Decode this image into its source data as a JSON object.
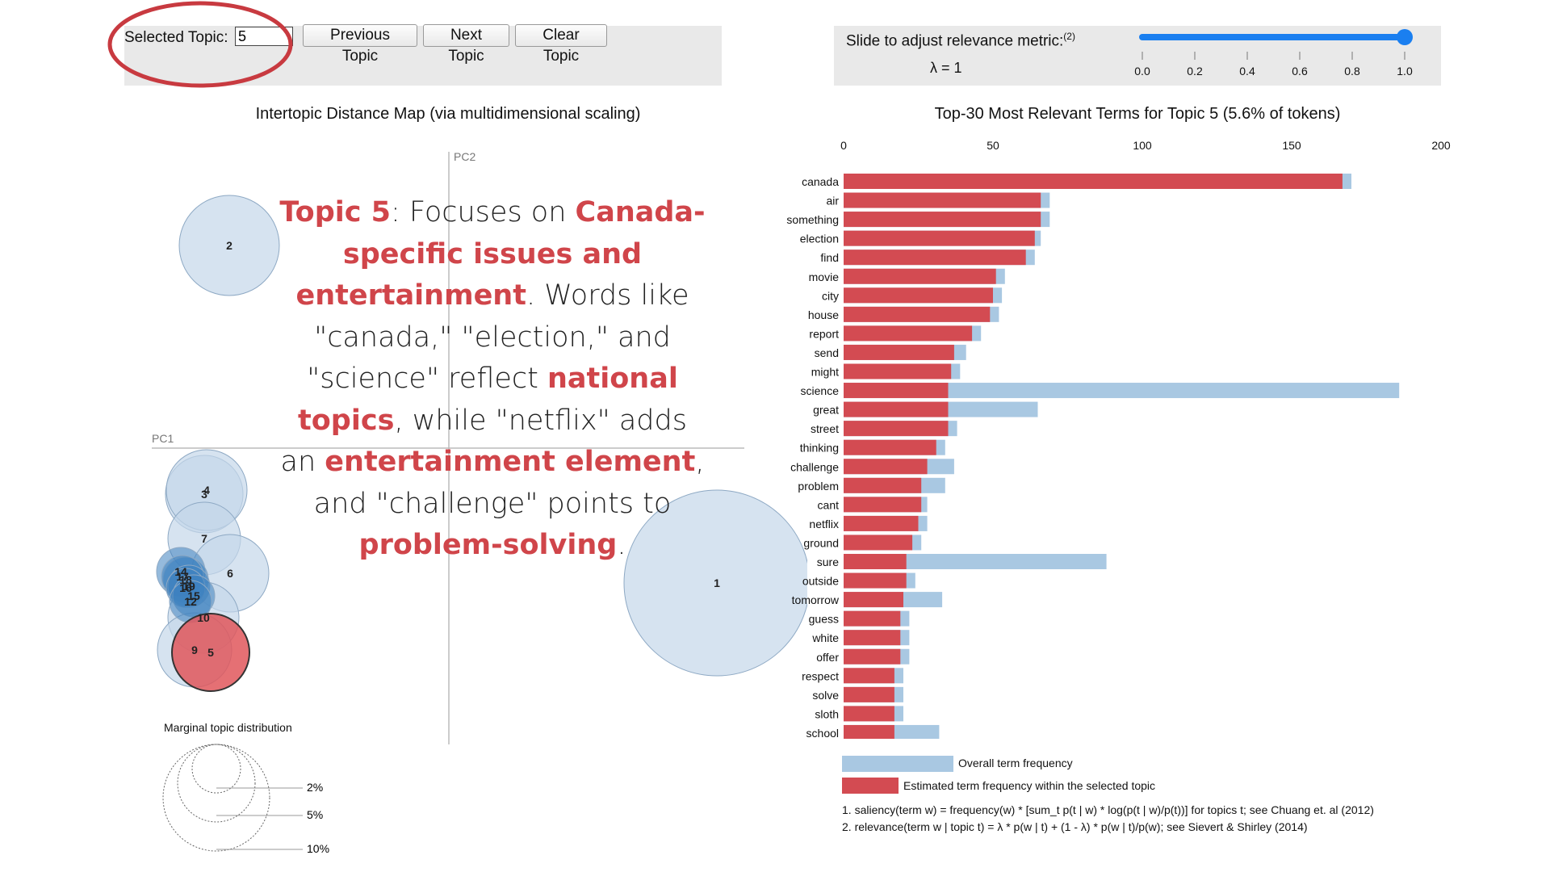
{
  "controls": {
    "selected_topic_label": "Selected Topic:",
    "selected_topic_value": "5",
    "previous_label": "Previous Topic",
    "next_label": "Next Topic",
    "clear_label": "Clear Topic"
  },
  "relevance": {
    "label": "Slide to adjust relevance metric:",
    "footnote_mark": "(2)",
    "lambda_text": "λ = 1",
    "lambda_value": 1,
    "ticks": [
      "0.0",
      "0.2",
      "0.4",
      "0.6",
      "0.8",
      "1.0"
    ],
    "track_color": "#1a7ff0"
  },
  "left_title": "Intertopic Distance Map (via multidimensional scaling)",
  "axes": {
    "pc1": "PC1",
    "pc2": "PC2"
  },
  "topics": [
    {
      "id": "1",
      "size": "large",
      "selected": false
    },
    {
      "id": "2",
      "size": "medium",
      "selected": false
    },
    {
      "id": "3",
      "size": "medium",
      "selected": false
    },
    {
      "id": "4",
      "size": "medium",
      "selected": false
    },
    {
      "id": "5",
      "size": "medium",
      "selected": true
    },
    {
      "id": "6",
      "size": "medium",
      "selected": false
    },
    {
      "id": "7",
      "size": "medium",
      "selected": false
    },
    {
      "id": "9",
      "size": "medium",
      "selected": false
    },
    {
      "id": "10",
      "size": "medium",
      "selected": false
    },
    {
      "id": "12",
      "size": "small",
      "selected": false
    },
    {
      "id": "14",
      "size": "small",
      "selected": false
    },
    {
      "id": "15",
      "size": "small",
      "selected": false
    },
    {
      "id": "16",
      "size": "small",
      "selected": false
    },
    {
      "id": "17",
      "size": "small",
      "selected": false
    },
    {
      "id": "18",
      "size": "small",
      "selected": false
    },
    {
      "id": "19",
      "size": "small",
      "selected": false
    }
  ],
  "marginal": {
    "title": "Marginal topic distribution",
    "labels": [
      "2%",
      "5%",
      "10%"
    ]
  },
  "overlay_text": {
    "t1": "Topic 5",
    "t2": ": Focuses on ",
    "t3": "Canada-specific issues and entertainment",
    "t4": ". Words like \"canada,\" \"election,\" and \"science\" reflect ",
    "t5": "national topics",
    "t6": ", while \"netflix\" adds an ",
    "t7": "entertainment element",
    "t8": ", and \"challenge\" points to ",
    "t9": "problem-solving",
    "t10": "."
  },
  "colors": {
    "overall": "#a9c8e2",
    "topic": "#d34b52",
    "bubble": "#c4d7ea",
    "selected_bubble": "#e0575c"
  },
  "chart_data": {
    "type": "bar",
    "title": "Top-30 Most Relevant Terms for Topic 5 (5.6% of tokens)",
    "xlim": [
      0,
      200
    ],
    "x_ticks": [
      0,
      50,
      100,
      150,
      200
    ],
    "categories": [
      "canada",
      "air",
      "something",
      "election",
      "find",
      "movie",
      "city",
      "house",
      "report",
      "send",
      "might",
      "science",
      "great",
      "street",
      "thinking",
      "challenge",
      "problem",
      "cant",
      "netflix",
      "ground",
      "sure",
      "outside",
      "tomorrow",
      "guess",
      "white",
      "offer",
      "respect",
      "solve",
      "sloth",
      "school"
    ],
    "series": [
      {
        "name": "Overall term frequency",
        "values": [
          170,
          69,
          69,
          66,
          64,
          54,
          53,
          52,
          46,
          41,
          39,
          186,
          65,
          38,
          34,
          37,
          34,
          28,
          28,
          26,
          88,
          24,
          33,
          22,
          22,
          22,
          20,
          20,
          20,
          32
        ]
      },
      {
        "name": "Estimated term frequency within the selected topic",
        "values": [
          167,
          66,
          66,
          64,
          61,
          51,
          50,
          49,
          43,
          37,
          36,
          35,
          35,
          35,
          31,
          28,
          26,
          26,
          25,
          23,
          21,
          21,
          20,
          19,
          19,
          19,
          17,
          17,
          17,
          17
        ]
      }
    ]
  },
  "legend": {
    "overall": "Overall term frequency",
    "topic": "Estimated term frequency within the selected topic"
  },
  "footnotes": {
    "f1": "1. saliency(term w) = frequency(w) * [sum_t p(t | w) * log(p(t | w)/p(t))] for topics t; see Chuang et. al (2012)",
    "f2": "2. relevance(term w | topic t) = λ * p(w | t) + (1 - λ) * p(w | t)/p(w); see Sievert & Shirley (2014)"
  }
}
